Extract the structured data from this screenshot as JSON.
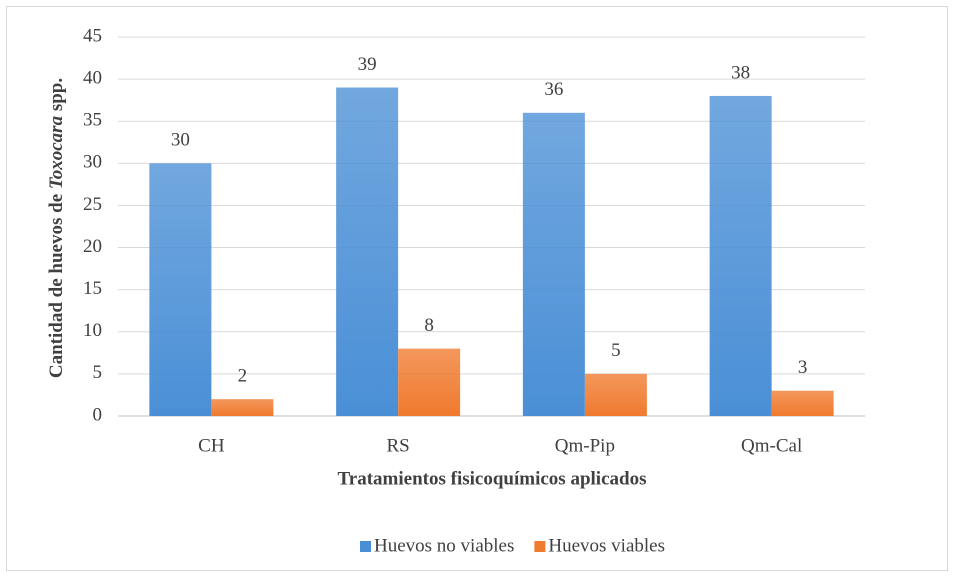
{
  "chart_data": {
    "type": "bar",
    "ylabel": [
      "Cantidad de huevos de ",
      "Toxocara",
      " spp."
    ],
    "xlabel": "Tratamientos fisicoquímicos aplicados",
    "categories": [
      "CH",
      "RS",
      "Qm-Pip",
      "Qm-Cal"
    ],
    "series": [
      {
        "name": "Huevos no viables",
        "color": "#4a8fd6",
        "values": [
          30,
          39,
          36,
          38
        ]
      },
      {
        "name": "Huevos viables",
        "color": "#f07a2e",
        "values": [
          2,
          8,
          5,
          3
        ]
      }
    ],
    "ylim": [
      0,
      45
    ],
    "yticks": [
      0,
      5,
      10,
      15,
      20,
      25,
      30,
      35,
      40,
      45
    ],
    "grid": true,
    "legend": "bottom"
  }
}
